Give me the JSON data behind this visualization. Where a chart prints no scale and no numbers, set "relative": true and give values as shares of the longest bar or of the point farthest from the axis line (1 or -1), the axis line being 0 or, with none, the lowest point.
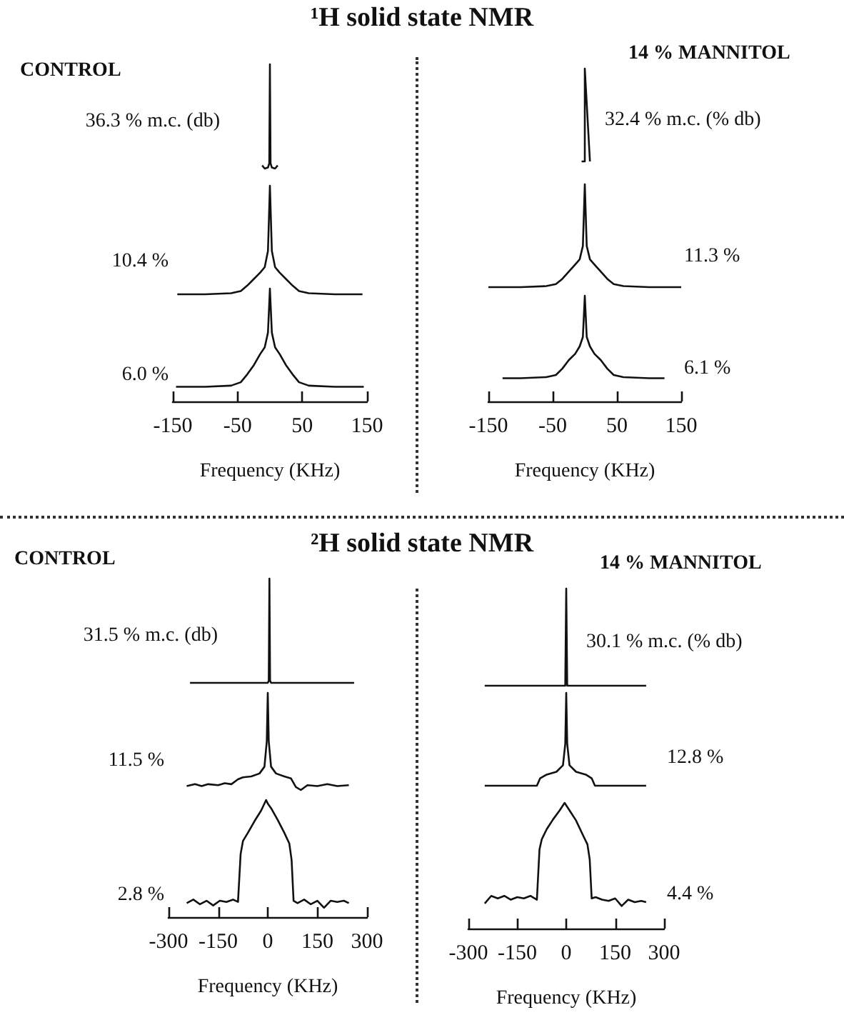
{
  "chart_data": [
    {
      "type": "line",
      "title": "¹H solid state NMR",
      "subtitle": "CONTROL",
      "relative": true,
      "x": [
        -12,
        -8,
        -3,
        -1,
        0,
        1,
        3,
        8,
        12
      ],
      "values": [
        0.03,
        0,
        0.01,
        0.05,
        1,
        0.05,
        0.01,
        0,
        0.03
      ],
      "annotations": [
        "36.3 % m.c. (db)"
      ],
      "xlim": [
        -150,
        150
      ],
      "tick_labels": false
    },
    {
      "type": "line",
      "relative": true,
      "x": [
        -143,
        -100,
        -60,
        -45,
        -35,
        -25,
        -15,
        -8,
        -3,
        0,
        3,
        8,
        15,
        25,
        35,
        45,
        60,
        100,
        143
      ],
      "values": [
        0,
        0,
        0.01,
        0.03,
        0.08,
        0.14,
        0.2,
        0.25,
        0.4,
        1,
        0.4,
        0.25,
        0.2,
        0.14,
        0.08,
        0.03,
        0.01,
        0,
        0
      ],
      "annotations": [
        "10.4 %"
      ],
      "xlim": [
        -150,
        150
      ],
      "tick_labels": false
    },
    {
      "type": "line",
      "relative": true,
      "x": [
        -145,
        -100,
        -60,
        -45,
        -35,
        -25,
        -15,
        -8,
        -3,
        0,
        3,
        8,
        15,
        25,
        35,
        45,
        60,
        100,
        145
      ],
      "values": [
        0.13,
        0.13,
        0.14,
        0.17,
        0.24,
        0.32,
        0.42,
        0.48,
        0.61,
        1,
        0.61,
        0.48,
        0.42,
        0.32,
        0.24,
        0.17,
        0.14,
        0.13,
        0.13
      ],
      "annotations": [
        "6.0 %"
      ],
      "xlim": [
        -150,
        150
      ],
      "xticks": [
        -150,
        -50,
        50,
        150
      ],
      "xlabel": "Frequency (KHz)",
      "tick_labels": "x"
    },
    {
      "type": "line",
      "subtitle": "14 % MANNITOL",
      "relative": true,
      "x": [
        -5,
        0,
        0,
        8
      ],
      "values": [
        0,
        0,
        1,
        0
      ],
      "annotations": [
        "32.4 % m.c. (% db)"
      ],
      "xlim": [
        -150,
        150
      ],
      "tick_labels": false
    },
    {
      "type": "line",
      "relative": true,
      "x": [
        -150,
        -100,
        -60,
        -45,
        -35,
        -25,
        -15,
        -8,
        -3,
        0,
        3,
        8,
        15,
        25,
        35,
        45,
        60,
        100,
        150
      ],
      "values": [
        0,
        0,
        0.01,
        0.03,
        0.08,
        0.15,
        0.22,
        0.27,
        0.4,
        1,
        0.4,
        0.27,
        0.22,
        0.15,
        0.08,
        0.03,
        0.01,
        0,
        0
      ],
      "annotations": [
        "11.3 %"
      ],
      "xlim": [
        -150,
        150
      ],
      "tick_labels": false
    },
    {
      "type": "line",
      "relative": true,
      "x": [
        -128,
        -100,
        -60,
        -45,
        -35,
        -25,
        -15,
        -8,
        -3,
        0,
        3,
        8,
        15,
        25,
        35,
        45,
        60,
        100,
        124
      ],
      "values": [
        0.22,
        0.22,
        0.23,
        0.25,
        0.31,
        0.39,
        0.45,
        0.52,
        0.61,
        1,
        0.61,
        0.52,
        0.45,
        0.39,
        0.31,
        0.25,
        0.23,
        0.22,
        0.22
      ],
      "annotations": [
        "6.1 %"
      ],
      "xlim": [
        -150,
        150
      ],
      "xticks": [
        -150,
        -50,
        50,
        150
      ],
      "xlabel": "Frequency (KHz)",
      "tick_labels": "x"
    },
    {
      "type": "line",
      "title": "²H solid state NMR",
      "subtitle": "CONTROL",
      "relative": true,
      "x": [
        -235,
        -200,
        -150,
        -100,
        -50,
        -20,
        0,
        3,
        5,
        7,
        10,
        30,
        60,
        100,
        150,
        200,
        261
      ],
      "values": [
        0,
        0,
        0,
        0,
        0,
        0,
        0,
        0.02,
        1,
        0.02,
        0,
        0,
        0,
        0,
        0,
        0,
        0
      ],
      "annotations": [
        "31.5 % m.c. (db)"
      ],
      "xlim": [
        -300,
        300
      ],
      "tick_labels": false
    },
    {
      "type": "line",
      "relative": true,
      "x": [
        -245,
        -220,
        -200,
        -180,
        -150,
        -130,
        -110,
        -90,
        -75,
        -50,
        -25,
        -10,
        -3,
        0,
        3,
        10,
        25,
        50,
        70,
        85,
        100,
        120,
        150,
        180,
        210,
        245
      ],
      "values": [
        0.04,
        0.06,
        0.04,
        0.06,
        0.05,
        0.07,
        0.06,
        0.11,
        0.13,
        0.14,
        0.17,
        0.24,
        0.5,
        1,
        0.5,
        0.24,
        0.17,
        0.14,
        0.12,
        0.03,
        0,
        0.05,
        0.04,
        0.06,
        0.04,
        0.05
      ],
      "annotations": [
        "11.5 %"
      ],
      "xlim": [
        -300,
        300
      ],
      "tick_labels": false
    },
    {
      "type": "line",
      "relative": true,
      "x": [
        -245,
        -225,
        -205,
        -185,
        -165,
        -145,
        -125,
        -105,
        -90,
        -82,
        -75,
        -60,
        -40,
        -20,
        -5,
        0,
        10,
        30,
        50,
        65,
        72,
        78,
        90,
        110,
        130,
        150,
        170,
        190,
        210,
        230,
        245
      ],
      "values": [
        0.12,
        0.15,
        0.11,
        0.14,
        0.1,
        0.14,
        0.13,
        0.15,
        0.13,
        0.54,
        0.65,
        0.72,
        0.82,
        0.91,
        1,
        0.97,
        0.93,
        0.83,
        0.72,
        0.63,
        0.49,
        0.14,
        0.12,
        0.15,
        0.11,
        0.14,
        0.08,
        0.14,
        0.13,
        0.14,
        0.12
      ],
      "annotations": [
        "2.8 %"
      ],
      "xlim": [
        -300,
        300
      ],
      "xticks": [
        -300,
        -150,
        0,
        150,
        300
      ],
      "xlabel": "Frequency (KHz)",
      "tick_labels": "x"
    },
    {
      "type": "line",
      "subtitle": "14 % MANNITOL",
      "relative": true,
      "x": [
        -250,
        -200,
        -150,
        -100,
        -50,
        -20,
        -3,
        0,
        3,
        20,
        50,
        100,
        150,
        200,
        245
      ],
      "values": [
        0,
        0,
        0,
        0,
        0,
        0,
        0,
        1,
        0,
        0,
        0,
        0,
        0,
        0,
        0
      ],
      "annotations": [
        "30.1 % m.c. (% db)"
      ],
      "xlim": [
        -300,
        300
      ],
      "tick_labels": false
    },
    {
      "type": "line",
      "relative": true,
      "x": [
        -250,
        -90,
        -80,
        -60,
        -30,
        -10,
        -3,
        0,
        3,
        10,
        30,
        60,
        78,
        88,
        245
      ],
      "values": [
        0,
        0,
        0.08,
        0.12,
        0.15,
        0.22,
        0.45,
        1,
        0.45,
        0.22,
        0.15,
        0.12,
        0.08,
        0,
        0
      ],
      "annotations": [
        "12.8 %"
      ],
      "xlim": [
        -300,
        300
      ],
      "tick_labels": false
    },
    {
      "type": "line",
      "relative": true,
      "x": [
        -250,
        -230,
        -210,
        -190,
        -170,
        -150,
        -130,
        -110,
        -90,
        -82,
        -75,
        -60,
        -40,
        -20,
        -5,
        0,
        10,
        30,
        50,
        65,
        72,
        78,
        90,
        110,
        130,
        150,
        170,
        190,
        210,
        230,
        245
      ],
      "values": [
        0.2,
        0.26,
        0.24,
        0.26,
        0.23,
        0.25,
        0.24,
        0.26,
        0.23,
        0.63,
        0.71,
        0.79,
        0.87,
        0.94,
        1,
        0.98,
        0.94,
        0.86,
        0.75,
        0.67,
        0.55,
        0.24,
        0.25,
        0.23,
        0.22,
        0.24,
        0.18,
        0.23,
        0.21,
        0.22,
        0.21
      ],
      "annotations": [
        "4.4 %"
      ],
      "xlim": [
        -300,
        300
      ],
      "xticks": [
        -300,
        -150,
        0,
        150,
        300
      ],
      "xlabel": "Frequency (KHz)",
      "tick_labels": "x"
    }
  ]
}
